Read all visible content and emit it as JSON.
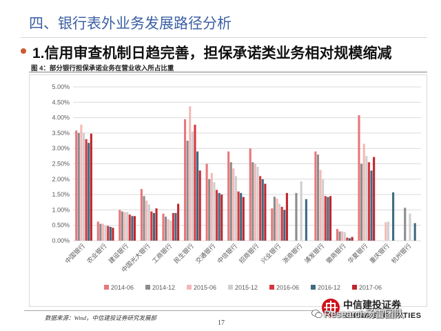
{
  "slide": {
    "title": "四、银行表外业务发展路径分析",
    "heading": "1.信用审查机制日趋完善，担保承诺类业务相对规模缩减",
    "figure_caption": "图 4：部分银行担保承诺业务在营业收入所占比重",
    "source": "数据来源：Wind，中信建投证券研究发展部",
    "page_number": "17",
    "bullet_icon": "bullet-dot-icon"
  },
  "logo": {
    "icon": "company-logo-icon",
    "name_cn": "中信建投证券",
    "name_en": "CHINA SECURITIES"
  },
  "watermark": {
    "icon": "wechat-icon",
    "text": "Research汤雷团队"
  },
  "colors": {
    "title": "#3b5fa3",
    "bullet": "#cf5a30",
    "logo": "#d0121b"
  },
  "chart_data": {
    "type": "bar",
    "categories": [
      "中国银行",
      "农业银行",
      "建设银行",
      "中国光大银行",
      "工商银行",
      "民生银行",
      "交通银行",
      "中信银行",
      "招商银行",
      "兴业银行",
      "浙商银行",
      "浦发银行",
      "徽商银行",
      "华夏银行",
      "重庆银行",
      "杭州银行"
    ],
    "ylim": [
      0,
      5
    ],
    "yticks": [
      "0.00%",
      "0.50%",
      "1.00%",
      "1.50%",
      "2.00%",
      "2.50%",
      "3.00%",
      "3.50%",
      "4.00%",
      "4.50%",
      "5.00%"
    ],
    "unit": "%",
    "grid": true,
    "legend_position": "bottom",
    "series": [
      {
        "name": "2014-06",
        "color": "#e8777a",
        "values": [
          3.58,
          0.62,
          1.0,
          1.68,
          0.88,
          3.95,
          2.5,
          2.9,
          3.0,
          1.05,
          null,
          2.9,
          0.38,
          4.08,
          null,
          null
        ]
      },
      {
        "name": "2014-12",
        "color": "#8c8c8c",
        "values": [
          3.5,
          0.55,
          0.95,
          1.45,
          0.78,
          3.25,
          2.0,
          2.55,
          2.55,
          1.43,
          1.55,
          2.8,
          0.3,
          2.5,
          null,
          1.07
        ]
      },
      {
        "name": "2015-06",
        "color": "#f4b9b8",
        "values": [
          3.77,
          0.55,
          0.93,
          1.3,
          0.7,
          4.37,
          2.2,
          2.35,
          2.5,
          1.37,
          null,
          2.3,
          0.3,
          3.15,
          0.6,
          null
        ]
      },
      {
        "name": "2015-12",
        "color": "#cfcfcf",
        "values": [
          3.5,
          0.5,
          0.93,
          1.18,
          0.65,
          3.55,
          1.9,
          2.1,
          2.4,
          1.2,
          1.93,
          2.0,
          0.28,
          2.75,
          0.62,
          0.88
        ]
      },
      {
        "name": "2016-06",
        "color": "#d9363e",
        "values": [
          3.3,
          0.48,
          0.85,
          0.95,
          0.9,
          3.77,
          1.65,
          1.6,
          2.1,
          1.1,
          null,
          1.45,
          0.1,
          2.55,
          null,
          null
        ]
      },
      {
        "name": "2016-12",
        "color": "#3e6a80",
        "values": [
          3.18,
          0.45,
          0.8,
          0.9,
          0.9,
          2.9,
          1.55,
          1.55,
          2.0,
          1.0,
          1.35,
          1.42,
          0.08,
          2.28,
          1.57,
          0.57
        ]
      },
      {
        "name": "2017-06",
        "color": "#c0262d",
        "values": [
          3.48,
          0.42,
          0.8,
          1.05,
          1.2,
          2.28,
          1.5,
          1.42,
          1.85,
          1.55,
          null,
          1.45,
          0.12,
          2.72,
          null,
          null
        ]
      }
    ]
  }
}
